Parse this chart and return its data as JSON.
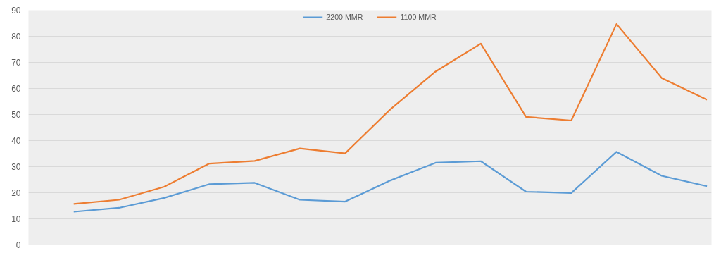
{
  "chart_data": {
    "type": "line",
    "categories": [
      null,
      null,
      null,
      null,
      null,
      null,
      null,
      null,
      null,
      null,
      null,
      null,
      null,
      null,
      null
    ],
    "series": [
      {
        "name": "2200 MMR",
        "color": "#5b9bd5",
        "values": [
          12.7,
          14.2,
          18.0,
          23.3,
          23.8,
          17.3,
          16.6,
          24.7,
          31.5,
          32.1,
          20.4,
          19.9,
          35.7,
          26.5,
          22.5
        ]
      },
      {
        "name": "1100 MMR",
        "color": "#ed7d31",
        "values": [
          15.7,
          17.3,
          22.3,
          31.2,
          32.2,
          37.0,
          35.1,
          52.0,
          66.5,
          77.2,
          49.1,
          47.7,
          84.7,
          64.0,
          55.7
        ]
      }
    ],
    "ylim": [
      0,
      90
    ],
    "yticks": [
      0,
      10,
      20,
      30,
      40,
      50,
      60,
      70,
      80,
      90
    ],
    "grid": "y",
    "legend": "top",
    "tick_labels": "y",
    "marker": "none",
    "line_style": "solid"
  }
}
